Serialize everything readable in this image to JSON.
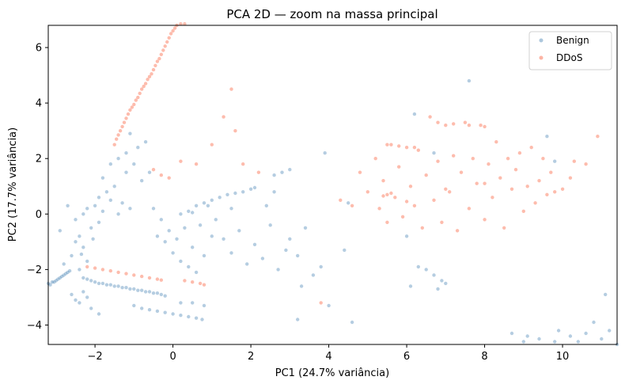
{
  "chart_data": {
    "type": "scatter",
    "title": "PCA 2D — zoom na massa principal",
    "xlabel": "PC1 (24.7% variância)",
    "ylabel": "PC2 (17.7% variância)",
    "xlim": [
      -3.2,
      11.4
    ],
    "ylim": [
      -4.7,
      6.8
    ],
    "xticks": [
      -2,
      0,
      2,
      4,
      6,
      8,
      10
    ],
    "yticks": [
      -4,
      -2,
      0,
      2,
      4,
      6
    ],
    "grid": false,
    "legend_position": "top-right",
    "series": [
      {
        "name": "Benign",
        "color": "#4682b4",
        "alpha": 0.4,
        "points": [
          [
            -3.2,
            -2.5
          ],
          [
            -3.1,
            -2.45
          ],
          [
            -3.0,
            -2.4
          ],
          [
            -2.9,
            -2.3
          ],
          [
            -2.8,
            -2.2
          ],
          [
            -2.75,
            -2.15
          ],
          [
            -2.7,
            -2.1
          ],
          [
            -2.65,
            -2.05
          ],
          [
            -3.15,
            -2.55
          ],
          [
            -3.05,
            -2.45
          ],
          [
            -2.95,
            -2.35
          ],
          [
            -2.85,
            -2.25
          ],
          [
            -2.5,
            -1.0
          ],
          [
            -2.4,
            -0.8
          ],
          [
            -2.6,
            -1.5
          ],
          [
            -2.3,
            -1.2
          ],
          [
            -2.2,
            -1.7
          ],
          [
            -2.4,
            -2.0
          ],
          [
            -2.1,
            -0.5
          ],
          [
            -2.3,
            0.0
          ],
          [
            -2.2,
            0.2
          ],
          [
            -2.0,
            0.3
          ],
          [
            -1.8,
            0.1
          ],
          [
            -1.6,
            0.5
          ],
          [
            -1.4,
            0.0
          ],
          [
            -2.8,
            -1.8
          ],
          [
            -2.9,
            -0.6
          ],
          [
            -2.5,
            -0.2
          ],
          [
            -2.7,
            0.3
          ],
          [
            -2.35,
            -1.45
          ],
          [
            -2.05,
            -0.9
          ],
          [
            -1.9,
            0.6
          ],
          [
            -1.7,
            0.8
          ],
          [
            -1.5,
            1.0
          ],
          [
            -1.3,
            0.4
          ],
          [
            -1.1,
            0.2
          ],
          [
            -1.9,
            -0.3
          ],
          [
            -2.6,
            -2.9
          ],
          [
            -2.5,
            -3.1
          ],
          [
            -2.4,
            -3.2
          ],
          [
            -2.3,
            -2.8
          ],
          [
            -2.2,
            -3.0
          ],
          [
            -2.1,
            -3.4
          ],
          [
            -1.9,
            -3.6
          ],
          [
            -2.3,
            -2.3
          ],
          [
            -2.1,
            -2.4
          ],
          [
            -1.9,
            -2.5
          ],
          [
            -1.7,
            -2.55
          ],
          [
            -1.5,
            -2.6
          ],
          [
            -1.3,
            -2.65
          ],
          [
            -1.1,
            -2.7
          ],
          [
            -0.9,
            -2.75
          ],
          [
            -0.7,
            -2.8
          ],
          [
            -0.5,
            -2.85
          ],
          [
            -0.3,
            -2.9
          ],
          [
            -0.2,
            -2.95
          ],
          [
            -2.2,
            -2.35
          ],
          [
            -2.0,
            -2.45
          ],
          [
            -1.8,
            -2.5
          ],
          [
            -1.6,
            -2.55
          ],
          [
            -1.4,
            -2.6
          ],
          [
            -1.2,
            -2.65
          ],
          [
            -1.0,
            -2.7
          ],
          [
            -0.8,
            -2.75
          ],
          [
            -0.6,
            -2.8
          ],
          [
            -0.4,
            -2.85
          ],
          [
            -1.0,
            -3.3
          ],
          [
            -0.8,
            -3.4
          ],
          [
            -0.6,
            -3.45
          ],
          [
            -0.4,
            -3.5
          ],
          [
            -0.2,
            -3.55
          ],
          [
            0.0,
            -3.6
          ],
          [
            0.2,
            -3.65
          ],
          [
            0.4,
            -3.7
          ],
          [
            0.6,
            -3.75
          ],
          [
            0.75,
            -3.8
          ],
          [
            0.2,
            -3.2
          ],
          [
            0.5,
            -3.2
          ],
          [
            0.8,
            -3.3
          ],
          [
            -1.2,
            1.5
          ],
          [
            -1.0,
            1.8
          ],
          [
            -0.8,
            1.2
          ],
          [
            -0.6,
            1.5
          ],
          [
            -0.9,
            2.4
          ],
          [
            -1.1,
            2.9
          ],
          [
            -0.7,
            2.6
          ],
          [
            -1.6,
            1.8
          ],
          [
            -1.4,
            2.0
          ],
          [
            -1.2,
            2.2
          ],
          [
            -1.8,
            1.3
          ],
          [
            -0.5,
            0.2
          ],
          [
            -0.3,
            -0.2
          ],
          [
            -0.1,
            -0.6
          ],
          [
            0.1,
            -0.9
          ],
          [
            0.3,
            -0.5
          ],
          [
            0.5,
            -1.2
          ],
          [
            0.7,
            -0.4
          ],
          [
            -0.4,
            -0.8
          ],
          [
            -0.2,
            -1.0
          ],
          [
            0.0,
            -1.4
          ],
          [
            0.2,
            -1.7
          ],
          [
            0.4,
            -1.9
          ],
          [
            0.6,
            -2.1
          ],
          [
            0.2,
            0.0
          ],
          [
            0.4,
            0.1
          ],
          [
            0.6,
            0.3
          ],
          [
            0.8,
            0.4
          ],
          [
            1.0,
            0.5
          ],
          [
            1.2,
            0.6
          ],
          [
            1.4,
            0.7
          ],
          [
            1.6,
            0.75
          ],
          [
            1.8,
            0.8
          ],
          [
            2.0,
            0.9
          ],
          [
            2.1,
            0.95
          ],
          [
            0.5,
            0.05
          ],
          [
            0.9,
            0.3
          ],
          [
            1.1,
            -0.2
          ],
          [
            1.3,
            -0.9
          ],
          [
            1.5,
            -1.4
          ],
          [
            1.7,
            -0.6
          ],
          [
            1.9,
            -1.8
          ],
          [
            2.1,
            -1.1
          ],
          [
            2.3,
            -1.6
          ],
          [
            2.5,
            -0.4
          ],
          [
            2.7,
            -2.0
          ],
          [
            2.9,
            -1.3
          ],
          [
            2.4,
            0.3
          ],
          [
            2.6,
            0.8
          ],
          [
            3.0,
            -0.9
          ],
          [
            3.2,
            -1.5
          ],
          [
            3.4,
            -0.5
          ],
          [
            3.6,
            -2.2
          ],
          [
            3.8,
            -1.9
          ],
          [
            3.3,
            -2.6
          ],
          [
            2.8,
            1.5
          ],
          [
            2.6,
            1.4
          ],
          [
            3.0,
            1.6
          ],
          [
            1.5,
            0.2
          ],
          [
            1.0,
            -0.8
          ],
          [
            0.8,
            -1.5
          ],
          [
            3.9,
            2.2
          ],
          [
            4.5,
            0.4
          ],
          [
            4.4,
            -1.3
          ],
          [
            4.6,
            -3.9
          ],
          [
            3.2,
            -3.8
          ],
          [
            4.0,
            -3.3
          ],
          [
            6.3,
            -1.9
          ],
          [
            6.5,
            -2.0
          ],
          [
            6.7,
            -2.2
          ],
          [
            6.9,
            -2.4
          ],
          [
            6.1,
            -2.6
          ],
          [
            6.8,
            -2.7
          ],
          [
            7.0,
            -2.5
          ],
          [
            6.2,
            3.6
          ],
          [
            6.7,
            2.2
          ],
          [
            7.6,
            4.8
          ],
          [
            9.6,
            2.8
          ],
          [
            9.8,
            1.9
          ],
          [
            6.0,
            -0.8
          ],
          [
            8.7,
            -4.3
          ],
          [
            9.1,
            -4.4
          ],
          [
            9.4,
            -4.5
          ],
          [
            9.8,
            -4.6
          ],
          [
            10.2,
            -4.4
          ],
          [
            10.6,
            -4.3
          ],
          [
            11.0,
            -4.5
          ],
          [
            11.2,
            -4.2
          ],
          [
            10.8,
            -3.9
          ],
          [
            11.4,
            -4.7
          ],
          [
            10.4,
            -4.6
          ],
          [
            9.9,
            -4.2
          ],
          [
            11.1,
            -2.9
          ],
          [
            9.0,
            -4.6
          ]
        ]
      },
      {
        "name": "DDoS",
        "color": "#fa6a4a",
        "alpha": 0.45,
        "points": [
          [
            -1.5,
            2.5
          ],
          [
            -1.45,
            2.7
          ],
          [
            -1.4,
            2.85
          ],
          [
            -1.35,
            3.0
          ],
          [
            -1.3,
            3.15
          ],
          [
            -1.25,
            3.3
          ],
          [
            -1.2,
            3.45
          ],
          [
            -1.15,
            3.6
          ],
          [
            -1.1,
            3.75
          ],
          [
            -1.05,
            3.85
          ],
          [
            -1.0,
            3.95
          ],
          [
            -0.95,
            4.1
          ],
          [
            -0.9,
            4.2
          ],
          [
            -0.85,
            4.35
          ],
          [
            -0.8,
            4.5
          ],
          [
            -0.75,
            4.6
          ],
          [
            -0.7,
            4.7
          ],
          [
            -0.65,
            4.85
          ],
          [
            -0.6,
            4.95
          ],
          [
            -0.55,
            5.05
          ],
          [
            -0.5,
            5.2
          ],
          [
            -0.45,
            5.35
          ],
          [
            -0.4,
            5.5
          ],
          [
            -0.35,
            5.6
          ],
          [
            -0.3,
            5.75
          ],
          [
            -0.25,
            5.9
          ],
          [
            -0.2,
            6.05
          ],
          [
            -0.15,
            6.2
          ],
          [
            -0.1,
            6.35
          ],
          [
            -0.05,
            6.5
          ],
          [
            0.0,
            6.6
          ],
          [
            0.05,
            6.7
          ],
          [
            0.1,
            6.8
          ],
          [
            0.2,
            6.85
          ],
          [
            0.3,
            6.85
          ],
          [
            -2.2,
            -1.9
          ],
          [
            -2.0,
            -1.95
          ],
          [
            -1.8,
            -2.0
          ],
          [
            -1.6,
            -2.05
          ],
          [
            -1.4,
            -2.1
          ],
          [
            -1.2,
            -2.15
          ],
          [
            -1.0,
            -2.2
          ],
          [
            -0.8,
            -2.25
          ],
          [
            -0.6,
            -2.3
          ],
          [
            -0.4,
            -2.35
          ],
          [
            -0.3,
            -2.38
          ],
          [
            0.3,
            -2.4
          ],
          [
            0.5,
            -2.45
          ],
          [
            0.7,
            -2.5
          ],
          [
            0.8,
            -2.55
          ],
          [
            -0.5,
            1.6
          ],
          [
            -0.3,
            1.4
          ],
          [
            -0.1,
            1.3
          ],
          [
            0.2,
            1.9
          ],
          [
            0.6,
            1.8
          ],
          [
            1.0,
            2.5
          ],
          [
            1.3,
            3.5
          ],
          [
            1.5,
            4.5
          ],
          [
            1.8,
            1.8
          ],
          [
            2.2,
            1.5
          ],
          [
            1.6,
            3.0
          ],
          [
            3.8,
            -3.2
          ],
          [
            4.3,
            0.5
          ],
          [
            4.6,
            0.3
          ],
          [
            4.8,
            1.5
          ],
          [
            5.0,
            0.8
          ],
          [
            5.2,
            2.0
          ],
          [
            5.3,
            0.2
          ],
          [
            5.4,
            1.2
          ],
          [
            5.5,
            -0.3
          ],
          [
            5.6,
            2.5
          ],
          [
            5.7,
            0.6
          ],
          [
            5.8,
            1.7
          ],
          [
            5.9,
            -0.1
          ],
          [
            6.0,
            2.4
          ],
          [
            6.1,
            1.0
          ],
          [
            6.2,
            0.3
          ],
          [
            6.3,
            2.3
          ],
          [
            6.4,
            -0.5
          ],
          [
            6.5,
            1.4
          ],
          [
            6.6,
            3.5
          ],
          [
            6.7,
            0.5
          ],
          [
            6.8,
            1.9
          ],
          [
            6.9,
            -0.3
          ],
          [
            7.0,
            3.2
          ],
          [
            7.1,
            0.8
          ],
          [
            7.2,
            2.1
          ],
          [
            7.3,
            -0.6
          ],
          [
            7.4,
            1.5
          ],
          [
            7.5,
            3.3
          ],
          [
            7.6,
            0.2
          ],
          [
            7.7,
            2.0
          ],
          [
            7.8,
            1.1
          ],
          [
            7.9,
            3.2
          ],
          [
            8.0,
            -0.2
          ],
          [
            8.1,
            1.8
          ],
          [
            8.2,
            0.6
          ],
          [
            8.3,
            2.6
          ],
          [
            8.4,
            1.3
          ],
          [
            8.5,
            -0.5
          ],
          [
            8.6,
            2.0
          ],
          [
            8.7,
            0.9
          ],
          [
            8.8,
            1.6
          ],
          [
            8.9,
            2.2
          ],
          [
            9.0,
            0.1
          ],
          [
            9.1,
            1.0
          ],
          [
            9.2,
            2.4
          ],
          [
            9.3,
            0.4
          ],
          [
            9.4,
            1.2
          ],
          [
            9.5,
            2.0
          ],
          [
            9.6,
            0.7
          ],
          [
            9.7,
            1.5
          ],
          [
            9.8,
            0.8
          ],
          [
            10.0,
            0.9
          ],
          [
            10.2,
            1.3
          ],
          [
            10.6,
            1.8
          ],
          [
            10.9,
            2.8
          ],
          [
            10.3,
            1.9
          ],
          [
            5.4,
            0.65
          ],
          [
            5.5,
            0.7
          ],
          [
            5.6,
            0.75
          ],
          [
            6.0,
            0.45
          ],
          [
            7.0,
            0.9
          ],
          [
            8.0,
            1.1
          ],
          [
            5.5,
            2.5
          ],
          [
            5.8,
            2.45
          ],
          [
            6.2,
            2.4
          ],
          [
            6.8,
            3.3
          ],
          [
            7.2,
            3.25
          ],
          [
            7.6,
            3.2
          ],
          [
            8.0,
            3.15
          ]
        ]
      }
    ]
  }
}
